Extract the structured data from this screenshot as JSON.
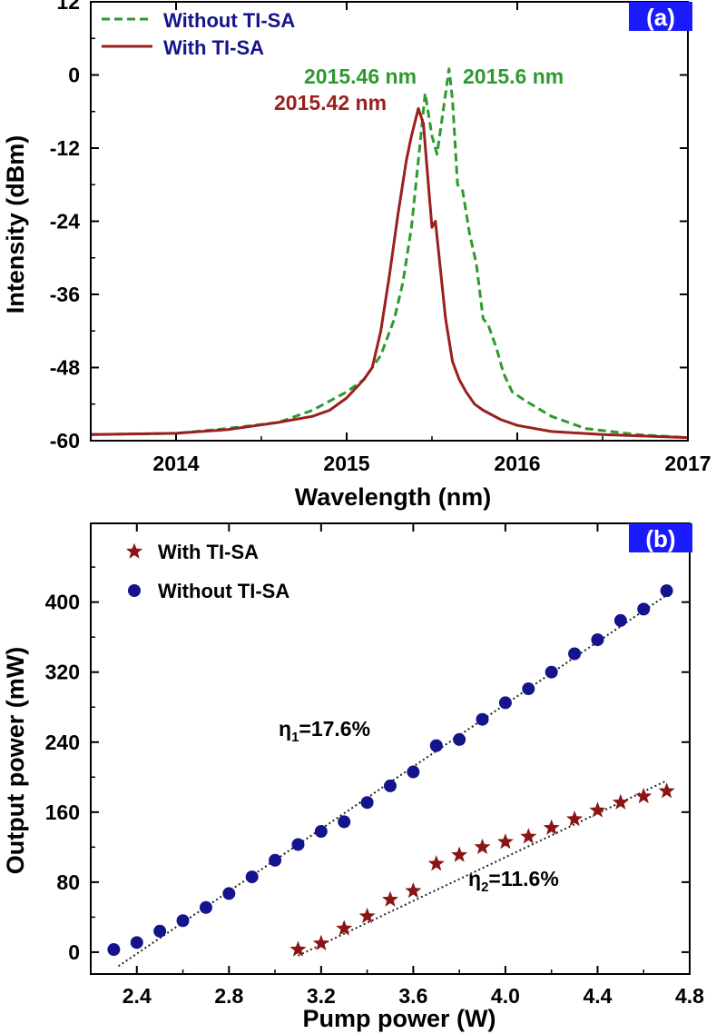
{
  "chart_data": [
    {
      "panel": "(a)",
      "type": "line",
      "xlabel": "Wavelength (nm)",
      "ylabel": "Intensity (dBm)",
      "xlim": [
        2013.5,
        2017
      ],
      "ylim": [
        -60,
        12
      ],
      "xticks": [
        "2014",
        "2015",
        "2016",
        "2017"
      ],
      "yticks": [
        "12",
        "0",
        "-12",
        "-24",
        "-36",
        "-48",
        "-60"
      ],
      "legend_position": "top-left",
      "colors": {
        "without": "#2e9a2e",
        "with": "#9a1f1f",
        "tag_bg": "#1a1aff"
      },
      "series": [
        {
          "name": "Without TI-SA",
          "style": "dashed",
          "x": [
            2013.5,
            2014.0,
            2014.3,
            2014.6,
            2014.8,
            2015.0,
            2015.1,
            2015.2,
            2015.28,
            2015.33,
            2015.38,
            2015.42,
            2015.46,
            2015.5,
            2015.53,
            2015.56,
            2015.6,
            2015.62,
            2015.65,
            2015.68,
            2015.72,
            2015.76,
            2015.8,
            2015.83,
            2015.88,
            2015.92,
            2015.97,
            2016.05,
            2016.2,
            2016.4,
            2016.7,
            2017.0
          ],
          "y": [
            -59,
            -58.8,
            -58,
            -57,
            -55,
            -52,
            -50,
            -46,
            -40,
            -34,
            -25,
            -14,
            -3,
            -10,
            -13,
            -7,
            1,
            -4,
            -18,
            -19,
            -26,
            -31,
            -40,
            -41,
            -45,
            -49,
            -52,
            -53.5,
            -56,
            -58,
            -59,
            -59.5
          ]
        },
        {
          "name": "With TI-SA",
          "style": "solid",
          "x": [
            2013.5,
            2014.0,
            2014.3,
            2014.6,
            2014.8,
            2014.9,
            2015.0,
            2015.1,
            2015.15,
            2015.2,
            2015.25,
            2015.3,
            2015.35,
            2015.38,
            2015.42,
            2015.45,
            2015.47,
            2015.5,
            2015.52,
            2015.55,
            2015.58,
            2015.62,
            2015.66,
            2015.7,
            2015.75,
            2015.8,
            2015.9,
            2016.0,
            2016.2,
            2016.5,
            2017.0
          ],
          "y": [
            -59,
            -58.8,
            -58.2,
            -57,
            -56,
            -55,
            -53,
            -50,
            -48,
            -42,
            -33,
            -23,
            -14,
            -10,
            -5.5,
            -8,
            -15,
            -25,
            -24,
            -32,
            -40,
            -47,
            -50,
            -52,
            -54,
            -55,
            -56.5,
            -57.5,
            -58.5,
            -59,
            -59.5
          ]
        }
      ],
      "annotations": [
        {
          "text": "2015.46 nm",
          "color": "green"
        },
        {
          "text": "2015.6 nm",
          "color": "green"
        },
        {
          "text": "2015.42 nm",
          "color": "darkred"
        }
      ]
    },
    {
      "panel": "(b)",
      "type": "scatter",
      "xlabel": "Pump power (W)",
      "ylabel": "Output power (mW)",
      "xlim": [
        2.2,
        4.8
      ],
      "ylim": [
        -25,
        490
      ],
      "xticks": [
        "2.4",
        "2.8",
        "3.2",
        "3.6",
        "4.0",
        "4.4",
        "4.8"
      ],
      "yticks": [
        "0",
        "80",
        "160",
        "240",
        "320",
        "400"
      ],
      "legend_position": "top-left",
      "colors": {
        "without": "#14148c",
        "with": "#8b1515",
        "fit": "#222222",
        "tag_bg": "#1a1aff"
      },
      "series": [
        {
          "name": "With TI-SA",
          "marker": "star",
          "x": [
            3.1,
            3.2,
            3.3,
            3.4,
            3.5,
            3.6,
            3.7,
            3.8,
            3.9,
            4.0,
            4.1,
            4.2,
            4.3,
            4.4,
            4.5,
            4.6,
            4.7
          ],
          "y": [
            3,
            10,
            27,
            41,
            60,
            70,
            101,
            111,
            120,
            126,
            132,
            142,
            152,
            162,
            171,
            178,
            184
          ],
          "fit": {
            "x": [
              3.1,
              4.7
            ],
            "y": [
              -4,
              196
            ]
          }
        },
        {
          "name": "Without TI-SA",
          "marker": "circle",
          "x": [
            2.3,
            2.4,
            2.5,
            2.6,
            2.7,
            2.8,
            2.9,
            3.0,
            3.1,
            3.2,
            3.3,
            3.4,
            3.5,
            3.6,
            3.7,
            3.8,
            3.9,
            4.0,
            4.1,
            4.2,
            4.3,
            4.4,
            4.5,
            4.6,
            4.7
          ],
          "y": [
            3,
            11,
            24,
            36,
            51,
            67,
            86,
            105,
            123,
            138,
            149,
            171,
            190,
            206,
            236,
            243,
            266,
            285,
            301,
            320,
            341,
            357,
            379,
            392,
            413
          ],
          "fit": {
            "x": [
              2.32,
              4.7
            ],
            "y": [
              -16,
              408
            ]
          }
        }
      ],
      "annotations": [
        {
          "text": "η",
          "sub": "1",
          "rest": "=17.6%"
        },
        {
          "text": "η",
          "sub": "2",
          "rest": "=11.6%"
        }
      ]
    }
  ]
}
